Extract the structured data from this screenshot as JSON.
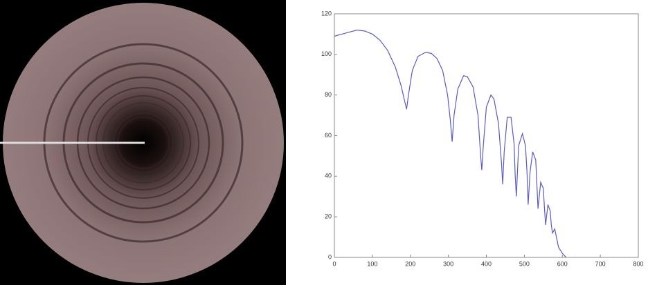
{
  "chart_data": {
    "type": "line",
    "x": [
      0,
      20,
      40,
      60,
      80,
      100,
      120,
      140,
      160,
      175,
      185,
      190,
      195,
      205,
      220,
      240,
      255,
      270,
      285,
      298,
      305,
      310,
      315,
      325,
      340,
      350,
      365,
      378,
      385,
      388,
      392,
      400,
      412,
      420,
      432,
      440,
      443,
      447,
      455,
      465,
      473,
      476,
      479,
      485,
      495,
      503,
      507,
      510,
      515,
      522,
      530,
      533,
      536,
      543,
      550,
      553,
      556,
      562,
      568,
      571,
      574,
      580,
      590,
      600,
      610
    ],
    "series": [
      {
        "color": "#5a5ac8",
        "values": [
          109,
          110,
          111,
          112,
          111.5,
          110,
          107,
          102,
          94,
          85,
          77,
          73,
          80,
          92,
          99,
          101,
          100.5,
          98,
          92,
          80,
          68,
          57,
          70,
          83,
          89.5,
          89,
          84,
          70,
          50,
          43,
          55,
          74,
          80,
          78,
          66,
          46,
          36,
          52,
          69,
          69,
          56,
          40,
          30,
          55,
          61,
          55,
          42,
          26,
          42,
          52,
          48,
          36,
          24,
          37,
          34,
          24,
          16,
          26,
          23,
          16,
          12,
          14,
          5,
          2,
          0
        ]
      }
    ],
    "xlim": [
      0,
      800
    ],
    "xticks": [
      0,
      100,
      200,
      300,
      400,
      500,
      600,
      700,
      800
    ],
    "ylim": [
      0,
      120
    ],
    "yticks": [
      0,
      20,
      40,
      60,
      80,
      100,
      120
    ]
  }
}
